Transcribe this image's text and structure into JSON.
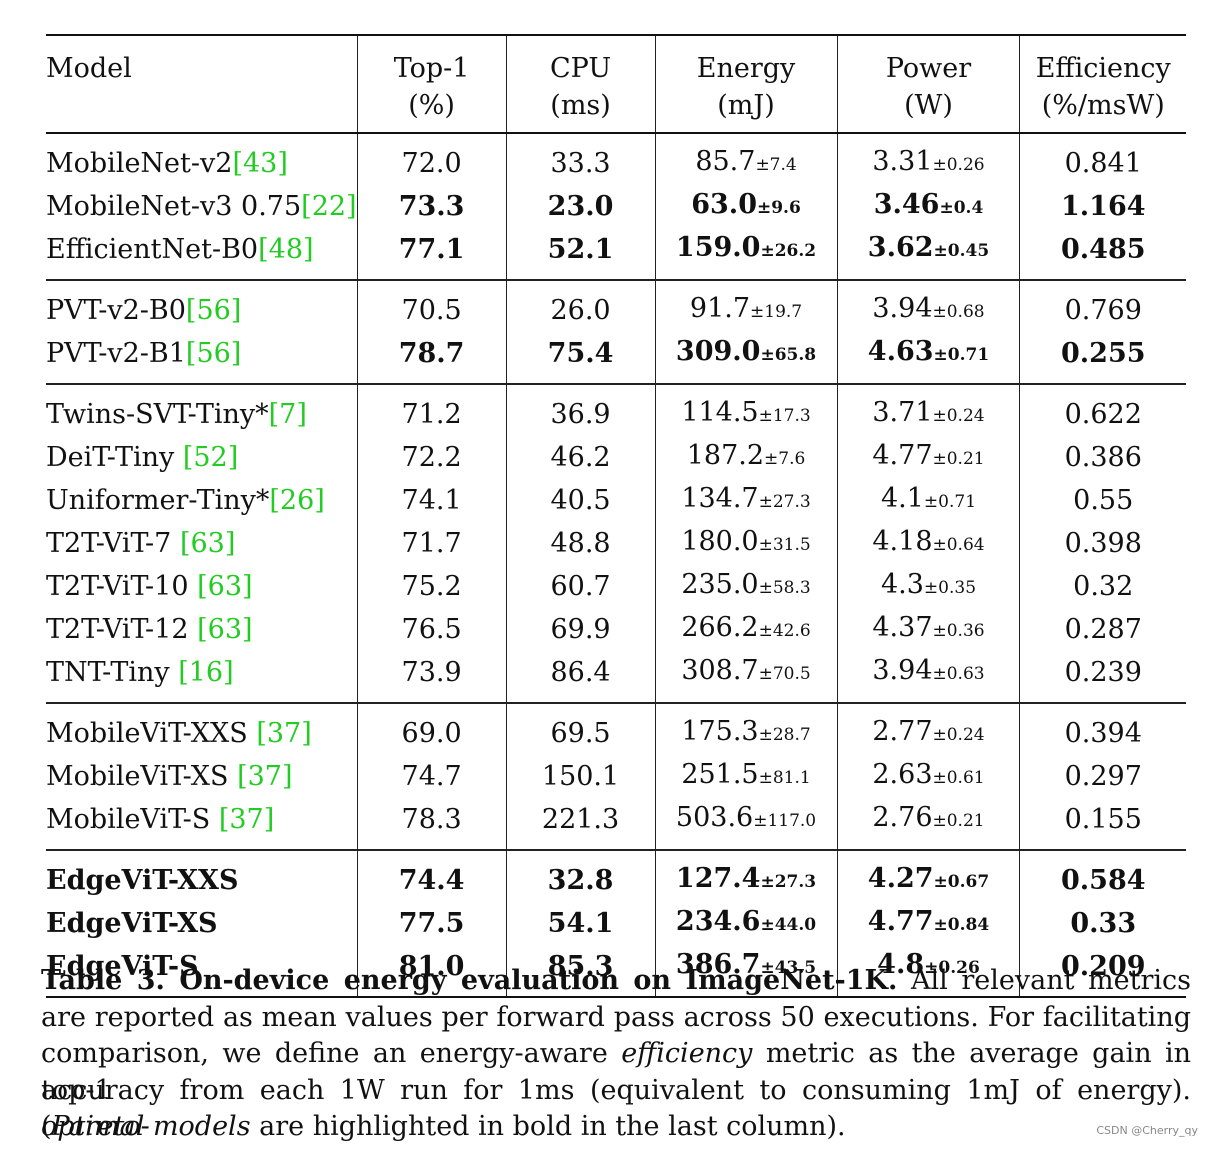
{
  "table": {
    "headers": [
      {
        "line1": "Model",
        "line2": ""
      },
      {
        "line1": "Top-1",
        "line2": "(%)"
      },
      {
        "line1": "CPU",
        "line2": "(ms)"
      },
      {
        "line1": "Energy",
        "line2": "(mJ)"
      },
      {
        "line1": "Power",
        "line2": "(W)"
      },
      {
        "line1": "Efficiency",
        "line2": "(%/msW)"
      }
    ],
    "groups": [
      [
        {
          "model": "MobileNet-v2",
          "ref": "[43]",
          "top1": "72.0",
          "cpu": "33.3",
          "energy": "85.7",
          "energy_sd": "±7.4",
          "power": "3.31",
          "power_sd": "±0.26",
          "eff": "0.841",
          "bold": false
        },
        {
          "model": "MobileNet-v3 0.75",
          "ref": "[22]",
          "top1": "73.3",
          "cpu": "23.0",
          "energy": "63.0",
          "energy_sd": "±9.6",
          "power": "3.46",
          "power_sd": "±0.4",
          "eff": "1.164",
          "bold": true
        },
        {
          "model": "EfficientNet-B0",
          "ref": "[48]",
          "top1": "77.1",
          "cpu": "52.1",
          "energy": "159.0",
          "energy_sd": "±26.2",
          "power": "3.62",
          "power_sd": "±0.45",
          "eff": "0.485",
          "bold": true
        }
      ],
      [
        {
          "model": "PVT-v2-B0",
          "ref": "[56]",
          "top1": "70.5",
          "cpu": "26.0",
          "energy": "91.7",
          "energy_sd": "±19.7",
          "power": "3.94",
          "power_sd": "±0.68",
          "eff": "0.769",
          "bold": false
        },
        {
          "model": "PVT-v2-B1",
          "ref": "[56]",
          "top1": "78.7",
          "cpu": "75.4",
          "energy": "309.0",
          "energy_sd": "±65.8",
          "power": "4.63",
          "power_sd": "±0.71",
          "eff": "0.255",
          "bold": true
        }
      ],
      [
        {
          "model": "Twins-SVT-Tiny*",
          "ref": "[7]",
          "top1": "71.2",
          "cpu": "36.9",
          "energy": "114.5",
          "energy_sd": "±17.3",
          "power": "3.71",
          "power_sd": "±0.24",
          "eff": "0.622",
          "bold": false
        },
        {
          "model": "DeiT-Tiny ",
          "ref": "[52]",
          "top1": "72.2",
          "cpu": "46.2",
          "energy": "187.2",
          "energy_sd": "±7.6",
          "power": "4.77",
          "power_sd": "±0.21",
          "eff": "0.386",
          "bold": false
        },
        {
          "model": "Uniformer-Tiny*",
          "ref": "[26]",
          "top1": "74.1",
          "cpu": "40.5",
          "energy": "134.7",
          "energy_sd": "±27.3",
          "power": "4.1",
          "power_sd": "±0.71",
          "eff": "0.55",
          "bold": false
        },
        {
          "model": "T2T-ViT-7 ",
          "ref": "[63]",
          "top1": "71.7",
          "cpu": "48.8",
          "energy": "180.0",
          "energy_sd": "±31.5",
          "power": "4.18",
          "power_sd": "±0.64",
          "eff": "0.398",
          "bold": false
        },
        {
          "model": "T2T-ViT-10 ",
          "ref": "[63]",
          "top1": "75.2",
          "cpu": "60.7",
          "energy": "235.0",
          "energy_sd": "±58.3",
          "power": "4.3",
          "power_sd": "±0.35",
          "eff": "0.32",
          "bold": false
        },
        {
          "model": "T2T-ViT-12 ",
          "ref": "[63]",
          "top1": "76.5",
          "cpu": "69.9",
          "energy": "266.2",
          "energy_sd": "±42.6",
          "power": "4.37",
          "power_sd": "±0.36",
          "eff": "0.287",
          "bold": false
        },
        {
          "model": "TNT-Tiny ",
          "ref": "[16]",
          "top1": "73.9",
          "cpu": "86.4",
          "energy": "308.7",
          "energy_sd": "±70.5",
          "power": "3.94",
          "power_sd": "±0.63",
          "eff": "0.239",
          "bold": false
        }
      ],
      [
        {
          "model": "MobileViT-XXS ",
          "ref": "[37]",
          "top1": "69.0",
          "cpu": "69.5",
          "energy": "175.3",
          "energy_sd": "±28.7",
          "power": "2.77",
          "power_sd": "±0.24",
          "eff": "0.394",
          "bold": false
        },
        {
          "model": "MobileViT-XS ",
          "ref": "[37]",
          "top1": "74.7",
          "cpu": "150.1",
          "energy": "251.5",
          "energy_sd": "±81.1",
          "power": "2.63",
          "power_sd": "±0.61",
          "eff": "0.297",
          "bold": false
        },
        {
          "model": "MobileViT-S ",
          "ref": "[37]",
          "top1": "78.3",
          "cpu": "221.3",
          "energy": "503.6",
          "energy_sd": "±117.0",
          "power": "2.76",
          "power_sd": "±0.21",
          "eff": "0.155",
          "bold": false
        }
      ],
      [
        {
          "model": "EdgeViT-XXS",
          "ref": "",
          "top1": "74.4",
          "cpu": "32.8",
          "energy": "127.4",
          "energy_sd": "±27.3",
          "power": "4.27",
          "power_sd": "±0.67",
          "eff": "0.584",
          "bold": true
        },
        {
          "model": "EdgeViT-XS",
          "ref": "",
          "top1": "77.5",
          "cpu": "54.1",
          "energy": "234.6",
          "energy_sd": "±44.0",
          "power": "4.77",
          "power_sd": "±0.84",
          "eff": "0.33",
          "bold": true
        },
        {
          "model": "EdgeViT-S",
          "ref": "",
          "top1": "81.0",
          "cpu": "85.3",
          "energy": "386.7",
          "energy_sd": "±43.5",
          "power": "4.8",
          "power_sd": "±0.26",
          "eff": "0.209",
          "bold": true
        }
      ]
    ]
  },
  "caption": {
    "lead": "Table 3. On-device energy evaluation on ImageNet-1K.",
    "line1_rest": " All relevant metrics",
    "line2": "are reported as mean values per forward pass across 50 executions. For facilitating",
    "line3_a": "comparison, we define an energy-aware ",
    "line3_em": "efficiency",
    "line3_b": " metric as the average gain in top-1",
    "line4": "accuracy from each 1W run for 1ms (equivalent to consuming 1mJ of energy). (",
    "line4_em": "Pareto-",
    "line5_em": "optimal models",
    "line5_rest": " are highlighted in bold in the last column)."
  },
  "watermark": "CSDN @Cherry_qy",
  "colors": {
    "reference": "#22cc22",
    "text": "#111111"
  }
}
